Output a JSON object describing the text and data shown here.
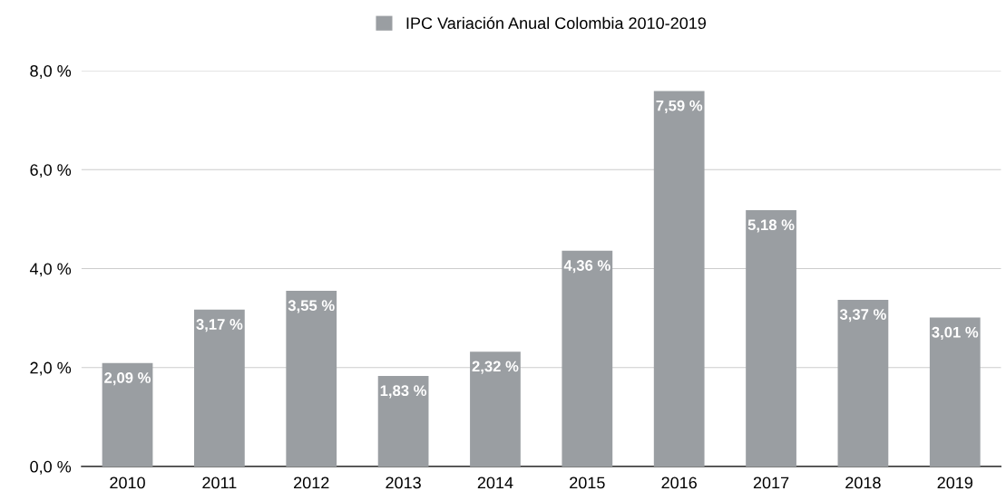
{
  "chart_data": {
    "type": "bar",
    "categories": [
      "2010",
      "2011",
      "2012",
      "2013",
      "2014",
      "2015",
      "2016",
      "2017",
      "2018",
      "2019"
    ],
    "series": [
      {
        "name": "IPC Variación Anual Colombia 2010-2019",
        "color": "#9a9ea2",
        "values": [
          2.09,
          3.17,
          3.55,
          1.83,
          2.32,
          4.36,
          7.59,
          5.18,
          3.37,
          3.01
        ],
        "value_labels": [
          "2,09 %",
          "3,17 %",
          "3,55 %",
          "1,83 %",
          "2,32 %",
          "4,36 %",
          "7,59 %",
          "5,18 %",
          "3,37 %",
          "3,01 %"
        ]
      }
    ],
    "ylim": [
      0,
      8
    ],
    "yticks": [
      {
        "value": 0,
        "label": "0,0 %"
      },
      {
        "value": 2,
        "label": "2,0 %"
      },
      {
        "value": 4,
        "label": "4,0 %"
      },
      {
        "value": 6,
        "label": "6,0 %"
      },
      {
        "value": 8,
        "label": "8,0 %"
      }
    ],
    "grid": "y",
    "legend": "top"
  }
}
